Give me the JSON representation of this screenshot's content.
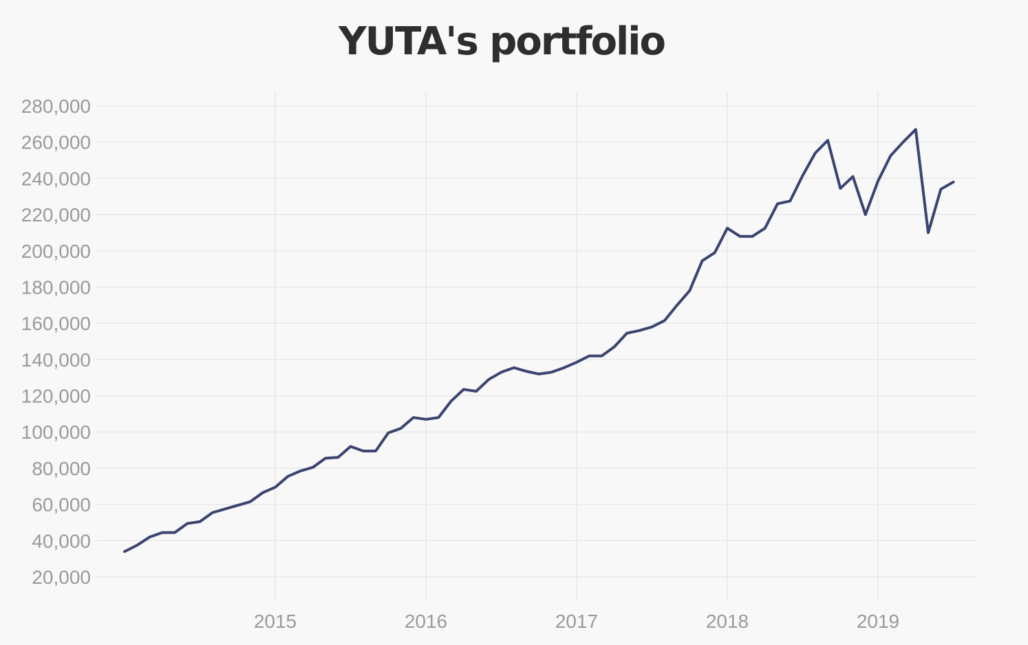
{
  "chart_data": {
    "type": "line",
    "title": "YUTA's portfolio",
    "xlabel": "",
    "ylabel": "",
    "x_tick_labels": [
      "2015",
      "2016",
      "2017",
      "2018",
      "2019"
    ],
    "y_tick_labels": [
      "20,000",
      "40,000",
      "60,000",
      "80,000",
      "100,000",
      "120,000",
      "140,000",
      "160,000",
      "180,000",
      "200,000",
      "220,000",
      "240,000",
      "260,000",
      "280,000"
    ],
    "ylim": [
      20000,
      280000
    ],
    "xlim": [
      "2014-01",
      "2019-07"
    ],
    "grid": true,
    "legend": "none",
    "line_color": "#3b4470",
    "series": [
      {
        "x": [
          "2014-01",
          "2014-02",
          "2014-03",
          "2014-04",
          "2014-05",
          "2014-06",
          "2014-07",
          "2014-08",
          "2014-09",
          "2014-10",
          "2014-11",
          "2014-12",
          "2015-01",
          "2015-02",
          "2015-03",
          "2015-04",
          "2015-05",
          "2015-06",
          "2015-07",
          "2015-08",
          "2015-09",
          "2015-10",
          "2015-11",
          "2015-12",
          "2016-01",
          "2016-02",
          "2016-03",
          "2016-04",
          "2016-05",
          "2016-06",
          "2016-07",
          "2016-08",
          "2016-09",
          "2016-10",
          "2016-11",
          "2016-12",
          "2017-01",
          "2017-02",
          "2017-03",
          "2017-04",
          "2017-05",
          "2017-06",
          "2017-07",
          "2017-08",
          "2017-09",
          "2017-10",
          "2017-11",
          "2017-12",
          "2018-01",
          "2018-02",
          "2018-03",
          "2018-04",
          "2018-05",
          "2018-06",
          "2018-07",
          "2018-08",
          "2018-09",
          "2018-10",
          "2018-11",
          "2018-12",
          "2019-01",
          "2019-02",
          "2019-03",
          "2019-04",
          "2019-05",
          "2019-06",
          "2019-07"
        ],
        "values": [
          34000,
          37500,
          42000,
          44500,
          44500,
          49500,
          50500,
          55500,
          57500,
          59500,
          61500,
          66500,
          69500,
          75500,
          78500,
          80500,
          85500,
          86000,
          92000,
          89500,
          89500,
          99500,
          102000,
          108000,
          107000,
          108000,
          117000,
          123500,
          122500,
          129000,
          133000,
          135500,
          133500,
          132000,
          133000,
          135500,
          138500,
          142000,
          142000,
          147000,
          154500,
          156000,
          158000,
          161500,
          170000,
          178000,
          194500,
          199000,
          212500,
          208000,
          208000,
          212500,
          226000,
          227500,
          241500,
          254000,
          261000,
          234500,
          241000,
          220000,
          238500,
          252500,
          260000,
          267000,
          210000,
          234000,
          238000
        ]
      }
    ]
  }
}
